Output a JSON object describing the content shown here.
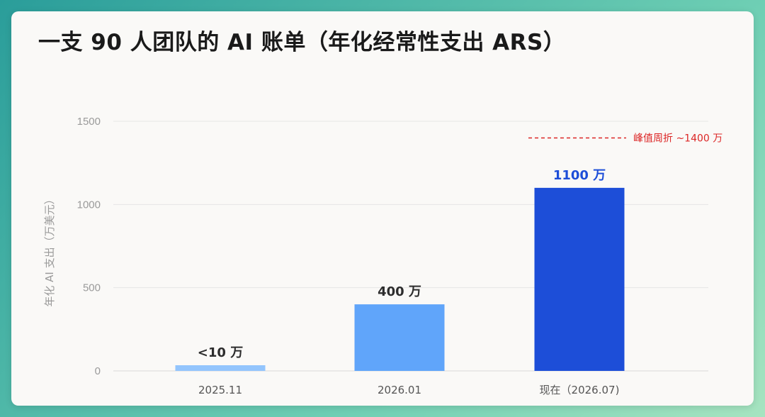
{
  "title": "一支 90 人团队的 AI 账单（年化经常性支出 ARS）",
  "colors": {
    "bar_2025_11": "#93c5fd",
    "bar_2026_01": "#60a5fa",
    "bar_current": "#1d4ed8",
    "peak_line": "#dc2626",
    "current_label": "#1d4ed8"
  },
  "chart_data": {
    "type": "bar",
    "categories": [
      "2025.11",
      "2026.01",
      "现在（2026.07)"
    ],
    "values": [
      5,
      400,
      1100
    ],
    "data_labels": [
      "<10 万",
      "400 万",
      "1100 万"
    ],
    "ylabel": "年化 AI 支出（万美元）",
    "xlabel": "",
    "ylim": [
      0,
      1500
    ],
    "yticks": [
      0,
      500,
      1000,
      1500
    ],
    "grid": true,
    "annotations": [
      {
        "type": "hline",
        "y": 1400,
        "style": "dashed",
        "label": "峰值周折 ~1400 万",
        "x_start_category": 2
      }
    ]
  }
}
